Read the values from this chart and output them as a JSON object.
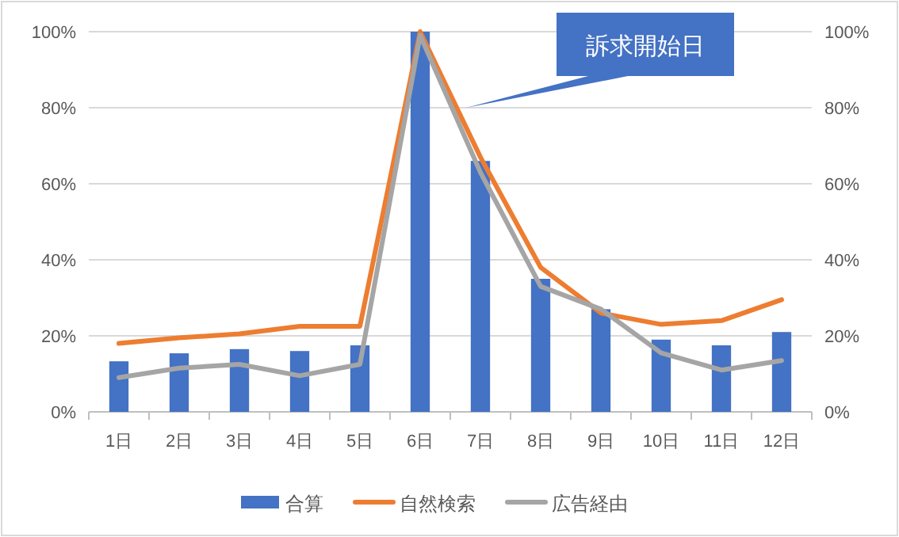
{
  "chart_data": {
    "type": "bar",
    "categories": [
      "1日",
      "2日",
      "3日",
      "4日",
      "5日",
      "6日",
      "7日",
      "8日",
      "9日",
      "10日",
      "11日",
      "12日"
    ],
    "series": [
      {
        "name": "合算",
        "color": "#4472c4",
        "values": [
          13.3,
          15.4,
          16.5,
          16,
          17.5,
          100,
          66,
          35,
          27,
          19,
          17.5,
          21
        ]
      },
      {
        "name": "自然検索",
        "type": "line",
        "color": "#ed7d31",
        "values": [
          18,
          19.5,
          20.5,
          22.5,
          22.5,
          100,
          67,
          38,
          26,
          23,
          24,
          29.5
        ]
      },
      {
        "name": "広告経由",
        "type": "line",
        "color": "#a5a5a5",
        "values": [
          9,
          11.5,
          12.5,
          9.5,
          12.5,
          99,
          63,
          33,
          27,
          15.5,
          11,
          13.5
        ]
      }
    ],
    "ylim": [
      0,
      100
    ],
    "yticks": [
      {
        "value": 0,
        "label": "0%"
      },
      {
        "value": 20,
        "label": "20%"
      },
      {
        "value": 40,
        "label": "40%"
      },
      {
        "value": 60,
        "label": "60%"
      },
      {
        "value": 80,
        "label": "80%"
      },
      {
        "value": 100,
        "label": "100%"
      }
    ],
    "y2lim": [
      0,
      100
    ],
    "y2ticks": [
      {
        "value": 0,
        "label": "0%"
      },
      {
        "value": 20,
        "label": "20%"
      },
      {
        "value": 40,
        "label": "40%"
      },
      {
        "value": 60,
        "label": "60%"
      },
      {
        "value": 80,
        "label": "80%"
      },
      {
        "value": 100,
        "label": "100%"
      }
    ],
    "grid": "y",
    "legend": "bottom",
    "marker": "none",
    "line_style": "solid",
    "annotations": [
      "訴求開始日"
    ]
  }
}
